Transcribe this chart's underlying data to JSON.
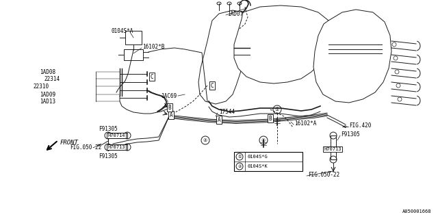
{
  "bg_color": "#ffffff",
  "line_color": "#1a1a1a",
  "part_numbers": {
    "0104SA": "0104S*A",
    "16102B": "16102*B",
    "1AD07": "1AD07",
    "1AD08": "1AD08",
    "22314": "22314",
    "22310": "22310",
    "1AD09": "1AD09",
    "1AD13": "1AD13",
    "1AC69": "1AC69",
    "17544": "17544",
    "16102A": "16102*A",
    "H70714": "H70714",
    "H70713": "H70713",
    "F91305": "F91305",
    "FIG050": "FIG.050-22",
    "FIG420": "FIG.420",
    "legend1": "0104S*G",
    "legend2": "0104S*K",
    "watermark": "A050001668"
  }
}
